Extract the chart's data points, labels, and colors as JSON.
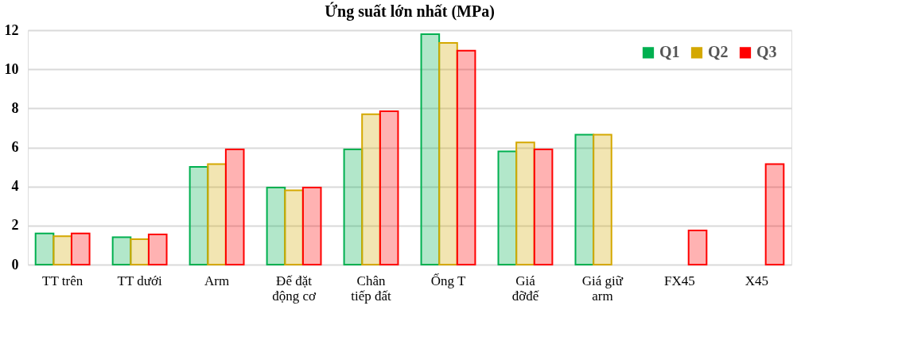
{
  "chart_data": {
    "type": "bar",
    "title": "Ứng suất lớn nhất (MPa)",
    "categories": [
      "TT trên",
      "TT dưới",
      "Arm",
      "Đế đặt\nđộng cơ",
      "Chân\ntiếp đất",
      "Ống T",
      "Giá\nđỡđế",
      "Giá giữ\narm",
      "FX45",
      "X45"
    ],
    "series": [
      {
        "name": "Q1",
        "color": "#00b050",
        "values": [
          1.6,
          1.4,
          5.0,
          3.95,
          5.9,
          11.8,
          5.8,
          6.65,
          null,
          null
        ]
      },
      {
        "name": "Q2",
        "color": "#d4a800",
        "values": [
          1.45,
          1.3,
          5.15,
          3.8,
          7.7,
          11.35,
          6.25,
          6.65,
          null,
          null
        ]
      },
      {
        "name": "Q3",
        "color": "#ff0000",
        "values": [
          1.6,
          1.55,
          5.9,
          3.95,
          7.85,
          10.95,
          5.9,
          null,
          1.75,
          5.15
        ]
      }
    ],
    "ylim": [
      0,
      12
    ],
    "yticks": [
      0,
      2,
      4,
      6,
      8,
      10,
      12
    ],
    "grid": "y",
    "legend": "top right"
  }
}
